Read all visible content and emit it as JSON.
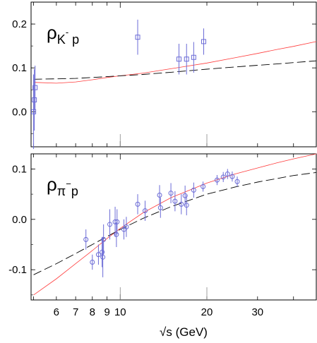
{
  "chart_data": [
    {
      "type": "scatter",
      "title": "ρK⁻p",
      "label_main": "ρ",
      "label_sub": "K",
      "label_sup": "-",
      "label_sub2": " p",
      "xscale": "log",
      "xlim": [
        4.9,
        48
      ],
      "ylim": [
        -0.08,
        0.25
      ],
      "yticks": [
        0.0,
        0.1,
        0.2
      ],
      "ytick_labels": [
        "0.0",
        "0.1",
        "0.2"
      ],
      "marker": "square",
      "marker_color": "#6b6bd6",
      "points": [
        {
          "x": 5.0,
          "y": 0.0,
          "err": 0.085
        },
        {
          "x": 5.03,
          "y": 0.027,
          "err": 0.07
        },
        {
          "x": 5.06,
          "y": 0.055,
          "err": 0.05
        },
        {
          "x": 11.5,
          "y": 0.17,
          "err": 0.04
        },
        {
          "x": 16.0,
          "y": 0.12,
          "err": 0.035
        },
        {
          "x": 17.0,
          "y": 0.12,
          "err": 0.035
        },
        {
          "x": 18.0,
          "y": 0.124,
          "err": 0.035
        },
        {
          "x": 19.5,
          "y": 0.16,
          "err": 0.03
        }
      ],
      "curves": [
        {
          "style": "solid",
          "color": "#ff3b3b",
          "x": [
            5,
            6,
            7,
            8,
            9,
            10,
            12,
            15,
            20,
            25,
            30,
            35,
            40,
            48
          ],
          "y": [
            0.067,
            0.065,
            0.068,
            0.073,
            0.078,
            0.082,
            0.088,
            0.098,
            0.111,
            0.123,
            0.133,
            0.142,
            0.149,
            0.16
          ]
        },
        {
          "style": "dashed",
          "color": "#000000",
          "x": [
            5,
            6,
            7,
            8,
            9,
            10,
            12,
            15,
            20,
            25,
            30,
            35,
            40,
            48
          ],
          "y": [
            0.074,
            0.075,
            0.076,
            0.078,
            0.08,
            0.082,
            0.085,
            0.09,
            0.097,
            0.102,
            0.106,
            0.109,
            0.112,
            0.116
          ]
        }
      ]
    },
    {
      "type": "scatter",
      "title": "ρπ⁻p",
      "label_main": "ρ",
      "label_sub": "π",
      "label_sup": "−",
      "label_sub2": "p",
      "xscale": "log",
      "xlim": [
        4.9,
        48
      ],
      "ylim": [
        -0.16,
        0.13
      ],
      "yticks": [
        -0.1,
        0.0,
        0.1
      ],
      "ytick_labels": [
        "-0.1",
        "0.0",
        "0.1"
      ],
      "xticks": [
        6,
        7,
        8,
        9,
        10,
        20,
        30
      ],
      "xtick_labels": [
        "6",
        "7",
        "8",
        "9",
        "10",
        "20",
        "30"
      ],
      "xlabel": "√s  (GeV)",
      "marker": "circle",
      "marker_color": "#6b6bd6",
      "points": [
        {
          "x": 7.6,
          "y": -0.04,
          "err": 0.02
        },
        {
          "x": 8.0,
          "y": -0.085,
          "err": 0.015
        },
        {
          "x": 8.4,
          "y": -0.07,
          "err": 0.02
        },
        {
          "x": 8.65,
          "y": -0.065,
          "err": 0.03
        },
        {
          "x": 8.7,
          "y": -0.075,
          "err": 0.04
        },
        {
          "x": 8.75,
          "y": -0.04,
          "err": 0.03
        },
        {
          "x": 9.2,
          "y": -0.01,
          "err": 0.03
        },
        {
          "x": 9.6,
          "y": -0.005,
          "err": 0.03
        },
        {
          "x": 9.7,
          "y": -0.03,
          "err": 0.025
        },
        {
          "x": 9.75,
          "y": -0.005,
          "err": 0.025
        },
        {
          "x": 10.3,
          "y": -0.02,
          "err": 0.02
        },
        {
          "x": 10.5,
          "y": -0.015,
          "err": 0.02
        },
        {
          "x": 11.5,
          "y": 0.03,
          "err": 0.02
        },
        {
          "x": 12.2,
          "y": 0.017,
          "err": 0.02
        },
        {
          "x": 13.7,
          "y": 0.048,
          "err": 0.02
        },
        {
          "x": 13.8,
          "y": 0.023,
          "err": 0.02
        },
        {
          "x": 15.0,
          "y": 0.052,
          "err": 0.02
        },
        {
          "x": 15.5,
          "y": 0.036,
          "err": 0.02
        },
        {
          "x": 16.3,
          "y": 0.03,
          "err": 0.02
        },
        {
          "x": 16.8,
          "y": 0.047,
          "err": 0.02
        },
        {
          "x": 17.0,
          "y": 0.028,
          "err": 0.02
        },
        {
          "x": 18.0,
          "y": 0.058,
          "err": 0.015
        },
        {
          "x": 19.4,
          "y": 0.065,
          "err": 0.01
        },
        {
          "x": 21.7,
          "y": 0.078,
          "err": 0.01
        },
        {
          "x": 22.8,
          "y": 0.084,
          "err": 0.01
        },
        {
          "x": 23.6,
          "y": 0.09,
          "err": 0.01
        },
        {
          "x": 24.5,
          "y": 0.085,
          "err": 0.01
        },
        {
          "x": 25.5,
          "y": 0.075,
          "err": 0.01
        }
      ],
      "curves": [
        {
          "style": "solid",
          "color": "#ff3b3b",
          "x": [
            5,
            6,
            7,
            8,
            9,
            10,
            12,
            15,
            20,
            25,
            30,
            35,
            40,
            48
          ],
          "y": [
            -0.15,
            -0.118,
            -0.088,
            -0.062,
            -0.038,
            -0.018,
            0.013,
            0.043,
            0.072,
            0.09,
            0.102,
            0.112,
            0.12,
            0.13
          ]
        },
        {
          "style": "dashed",
          "color": "#000000",
          "x": [
            5,
            6,
            7,
            8,
            9,
            10,
            12,
            15,
            20,
            25,
            30,
            35,
            40,
            48
          ],
          "y": [
            -0.11,
            -0.088,
            -0.068,
            -0.05,
            -0.034,
            -0.02,
            0.002,
            0.025,
            0.05,
            0.064,
            0.074,
            0.081,
            0.087,
            0.093
          ]
        }
      ]
    }
  ]
}
